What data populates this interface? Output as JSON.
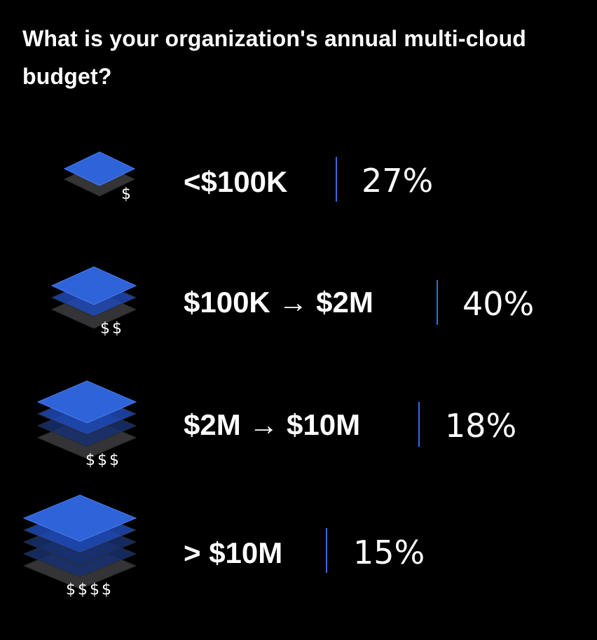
{
  "title": "What is your organization's annual multi-cloud budget?",
  "colors": {
    "background": "#000000",
    "accent_blue": "#2f63d8",
    "divider": "#3b67e0",
    "text": "#ffffff"
  },
  "chart_data": {
    "type": "bar",
    "title": "What is your organization's annual multi-cloud budget?",
    "categories": [
      "<$100K",
      "$100K → $2M",
      "$2M → $10M",
      "> $10M"
    ],
    "values": [
      27,
      40,
      18,
      15
    ],
    "value_labels": [
      "27%",
      "40%",
      "18%",
      "15%"
    ],
    "tier_symbols": [
      "$",
      "$$",
      "$$$",
      "$$$$"
    ],
    "layer_counts": [
      2,
      3,
      4,
      5
    ],
    "unit": "%"
  }
}
